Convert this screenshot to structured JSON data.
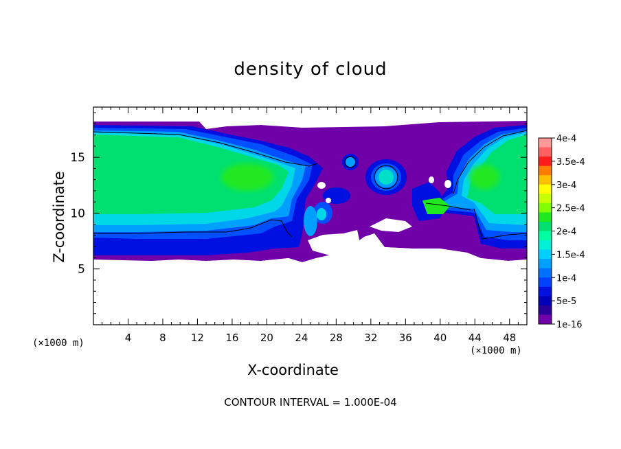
{
  "chart_data": {
    "type": "heatmap",
    "title": "density of cloud",
    "xlabel": "X-coordinate",
    "ylabel": "Z-coordinate",
    "x_unit": "(×1000 m)",
    "footer": "CONTOUR INTERVAL = 1.000E-04",
    "xlim": [
      0,
      50
    ],
    "ylim": [
      0,
      19.5
    ],
    "x_ticks": [
      4,
      8,
      12,
      16,
      20,
      24,
      28,
      32,
      36,
      40,
      44,
      48
    ],
    "y_ticks": [
      5,
      10,
      15
    ],
    "colorbar": {
      "labels": [
        "4e-4",
        "3.5e-4",
        "3e-4",
        "2.5e-4",
        "2e-4",
        "1.5e-4",
        "1e-4",
        "5e-5",
        "1e-16"
      ],
      "colors": [
        "#ff9999",
        "#ff6060",
        "#ff1c1c",
        "#ff7e00",
        "#ffc000",
        "#ffff00",
        "#c8ff00",
        "#80ff00",
        "#20e820",
        "#00e070",
        "#00ffa0",
        "#00f0d8",
        "#00d0ff",
        "#00a0ff",
        "#0070ff",
        "#0040ff",
        "#0010e0",
        "#0000b8",
        "#280098",
        "#7000a8"
      ]
    },
    "cloud_regions": {
      "cloud_base_z": 6.2,
      "cloud_top_z": 18.5,
      "core_level": "1.5e-4 to 2e-4",
      "gap_x_range": [
        23,
        40
      ],
      "cells_x": [
        33.5,
        40.5
      ]
    },
    "colors": {
      "outer": "#7000a8",
      "edge": "#0010e0",
      "mid": "#00a0ff",
      "core": "#00e070",
      "peak": "#20e820"
    }
  }
}
